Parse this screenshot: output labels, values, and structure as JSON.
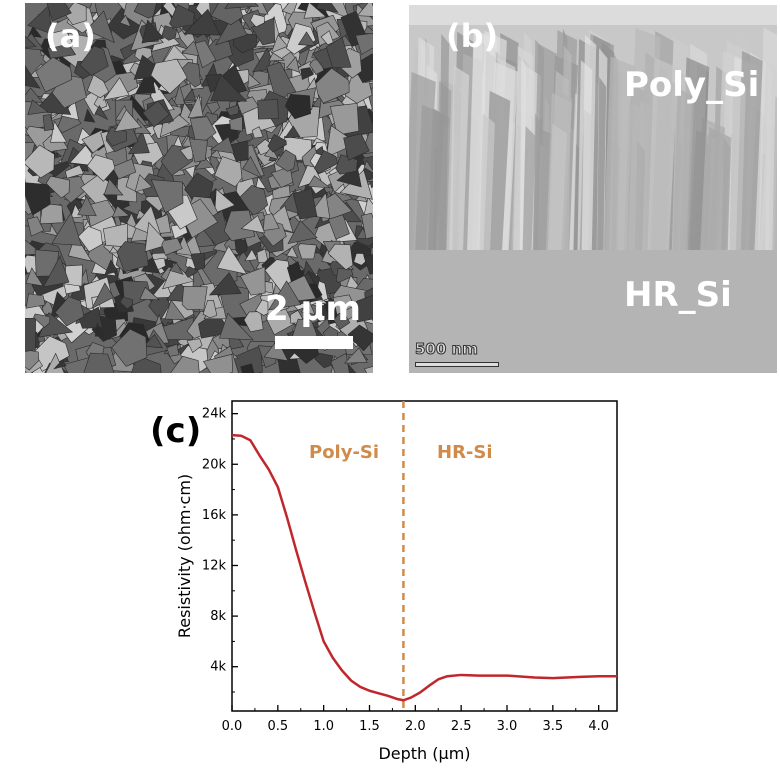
{
  "panel_a": {
    "label": "(a)",
    "scale_bar": "2 µm"
  },
  "panel_b": {
    "label": "(b)",
    "layer_top": "Poly_Si",
    "layer_bottom": "HR_Si",
    "scale_bar": "500 nm"
  },
  "panel_c_label": "(c)",
  "chart_data": {
    "type": "line",
    "xlabel": "Depth (µm)",
    "ylabel": "Resistivity (ohm·cm)",
    "xlim": [
      0,
      4.2
    ],
    "ylim": [
      500,
      25000
    ],
    "xticks": [
      "0.0",
      "0.5",
      "1.0",
      "1.5",
      "2.0",
      "2.5",
      "3.0",
      "3.5",
      "4.0"
    ],
    "yticks": [
      "4k",
      "8k",
      "12k",
      "16k",
      "20k",
      "24k"
    ],
    "grid": false,
    "line_color": "#c0272d",
    "annotation_color": "#d08a4a",
    "annotations": [
      "Poly-Si",
      "HR-Si"
    ],
    "boundary_depth": 1.87,
    "series": [
      {
        "x": [
          0,
          0.1,
          0.2,
          0.3,
          0.4,
          0.5,
          0.6,
          0.7,
          0.8,
          0.9,
          1.0,
          1.1,
          1.2,
          1.3,
          1.4,
          1.5,
          1.6,
          1.7,
          1.8,
          1.87,
          1.95,
          2.05,
          2.15,
          2.25,
          2.35,
          2.5,
          2.7,
          3.0,
          3.3,
          3.5,
          3.8,
          4.0,
          4.2
        ],
        "y": [
          22300,
          22250,
          21900,
          20700,
          19600,
          18200,
          15800,
          13200,
          10700,
          8300,
          6000,
          4700,
          3700,
          2900,
          2400,
          2100,
          1900,
          1700,
          1450,
          1350,
          1550,
          1950,
          2500,
          3000,
          3250,
          3350,
          3300,
          3300,
          3150,
          3100,
          3200,
          3250,
          3250
        ]
      }
    ]
  }
}
